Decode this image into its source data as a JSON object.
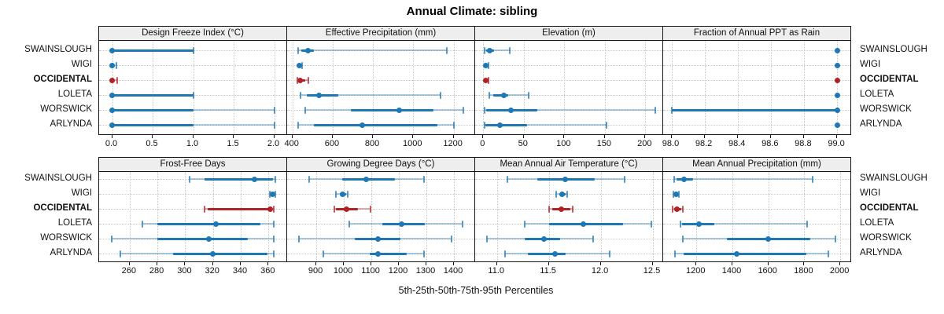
{
  "title": "Annual Climate: sibling",
  "footer": "5th-25th-50th-75th-95th Percentiles",
  "sites": [
    "SWAINSLOUGH",
    "WIGI",
    "OCCIDENTAL",
    "LOLETA",
    "WORSWICK",
    "ARLYNDA"
  ],
  "highlight_site": "OCCIDENTAL",
  "colors": {
    "blue": "#1f77b4",
    "red": "#b12226",
    "grid": "#c7c7c7",
    "strip_bg": "#eeeeee",
    "border": "#161616"
  },
  "chart_data": {
    "type": "scatter",
    "subtype": "percentile-dotplot",
    "percentile_labels": [
      "5th",
      "25th",
      "50th",
      "75th",
      "95th"
    ],
    "panels": [
      {
        "title": "Design Freeze Index (°C)",
        "band": 0,
        "ticks": [
          0.0,
          0.5,
          1.0,
          1.5,
          2.0
        ],
        "tick_labels": [
          "0.0",
          "0.5",
          "1.0",
          "1.5",
          "2.0"
        ],
        "range": [
          -0.16,
          2.17
        ],
        "data": {
          "SWAINSLOUGH": [
            0,
            0,
            0,
            1.0,
            1.0
          ],
          "WIGI": [
            0,
            0,
            0,
            0.02,
            0.05
          ],
          "OCCIDENTAL": [
            0,
            0,
            0,
            0.02,
            0.06
          ],
          "LOLETA": [
            0,
            0,
            0,
            1.0,
            1.0
          ],
          "WORSWICK": [
            0,
            0,
            0,
            1.0,
            2.0
          ],
          "ARLYNDA": [
            0,
            0,
            0,
            1.0,
            2.0
          ]
        }
      },
      {
        "title": "Effective Precipitation (mm)",
        "band": 0,
        "ticks": [
          400,
          600,
          800,
          1000,
          1200
        ],
        "tick_labels": [
          "400",
          "600",
          "800",
          "1000",
          "1200"
        ],
        "range": [
          374,
          1311
        ],
        "data": {
          "SWAINSLOUGH": [
            430,
            445,
            478,
            505,
            1165
          ],
          "WIGI": [
            424,
            430,
            434,
            440,
            448
          ],
          "OCCIDENTAL": [
            426,
            432,
            438,
            465,
            481
          ],
          "LOLETA": [
            440,
            470,
            533,
            627,
            1135
          ],
          "WORSWICK": [
            465,
            690,
            930,
            1100,
            1248
          ],
          "ARLYNDA": [
            430,
            505,
            745,
            1120,
            1203
          ]
        }
      },
      {
        "title": "Elevation (m)",
        "band": 0,
        "ticks": [
          0,
          50,
          100,
          150,
          200
        ],
        "tick_labels": [
          "0",
          "50",
          "100",
          "150",
          "200"
        ],
        "range": [
          -10,
          223
        ],
        "data": {
          "SWAINSLOUGH": [
            2,
            4,
            8,
            13,
            33
          ],
          "WIGI": [
            1,
            2,
            3,
            4,
            6
          ],
          "OCCIDENTAL": [
            1,
            2,
            3,
            4,
            6
          ],
          "LOLETA": [
            7,
            12,
            25,
            31,
            56
          ],
          "WORSWICK": [
            2,
            4,
            34,
            67,
            212
          ],
          "ARLYNDA": [
            2,
            3,
            21,
            54,
            152
          ]
        }
      },
      {
        "title": "Fraction of Annual PPT as Rain",
        "band": 0,
        "ticks": [
          98.0,
          98.2,
          98.4,
          98.6,
          98.8,
          99.0
        ],
        "tick_labels": [
          "98.0",
          "98.2",
          "98.4",
          "98.6",
          "98.8",
          "99.0"
        ],
        "range": [
          97.95,
          99.09
        ],
        "data": {
          "SWAINSLOUGH": [
            99.0,
            99.0,
            99.0,
            99.0,
            99.0
          ],
          "WIGI": [
            99.0,
            99.0,
            99.0,
            99.0,
            99.0
          ],
          "OCCIDENTAL": [
            99.0,
            99.0,
            99.0,
            99.0,
            99.0
          ],
          "LOLETA": [
            99.0,
            99.0,
            99.0,
            99.0,
            99.0
          ],
          "WORSWICK": [
            98.0,
            98.0,
            99.0,
            99.0,
            99.0
          ],
          "ARLYNDA": [
            99.0,
            99.0,
            99.0,
            99.0,
            99.0
          ]
        }
      },
      {
        "title": "Frost-Free Days",
        "band": 1,
        "ticks": [
          260,
          280,
          300,
          320,
          340,
          360
        ],
        "tick_labels": [
          "260",
          "280",
          "300",
          "320",
          "340",
          "360"
        ],
        "range": [
          238,
          374
        ],
        "data": {
          "SWAINSLOUGH": [
            303,
            314,
            350,
            363,
            365
          ],
          "WIGI": [
            361,
            362,
            363,
            364,
            365
          ],
          "OCCIDENTAL": [
            314,
            316,
            361,
            363,
            364
          ],
          "LOLETA": [
            269,
            280,
            322,
            354,
            364
          ],
          "WORSWICK": [
            247,
            280,
            317,
            345,
            364
          ],
          "ARLYNDA": [
            253,
            291,
            320,
            359,
            364
          ]
        }
      },
      {
        "title": "Growing Degree Days (°C)",
        "band": 1,
        "ticks": [
          900,
          1000,
          1100,
          1200,
          1300,
          1400
        ],
        "tick_labels": [
          "900",
          "1000",
          "1100",
          "1200",
          "1300",
          "1400"
        ],
        "range": [
          794,
          1480
        ],
        "data": {
          "SWAINSLOUGH": [
            875,
            995,
            1080,
            1185,
            1290
          ],
          "WIGI": [
            970,
            985,
            996,
            1008,
            1014
          ],
          "OCCIDENTAL": [
            965,
            972,
            1011,
            1050,
            1097
          ],
          "LOLETA": [
            1020,
            1140,
            1210,
            1295,
            1430
          ],
          "WORSWICK": [
            837,
            1040,
            1125,
            1205,
            1390
          ],
          "ARLYNDA": [
            925,
            1095,
            1123,
            1228,
            1290
          ]
        }
      },
      {
        "title": "Mean Annual Air Temperature (°C)",
        "band": 1,
        "ticks": [
          11.0,
          11.5,
          12.0,
          12.5
        ],
        "tick_labels": [
          "11.0",
          "11.5",
          "12.0",
          "12.5"
        ],
        "range": [
          10.79,
          12.61
        ],
        "data": {
          "SWAINSLOUGH": [
            11.1,
            11.39,
            11.66,
            11.94,
            12.23
          ],
          "WIGI": [
            11.57,
            11.6,
            11.63,
            11.66,
            11.68
          ],
          "OCCIDENTAL": [
            11.5,
            11.53,
            11.62,
            11.71,
            11.73
          ],
          "LOLETA": [
            11.27,
            11.5,
            11.83,
            12.22,
            12.49
          ],
          "WORSWICK": [
            10.9,
            11.27,
            11.45,
            11.61,
            11.93
          ],
          "ARLYNDA": [
            11.08,
            11.3,
            11.56,
            11.66,
            12.09
          ]
        }
      },
      {
        "title": "Mean Annual Precipitation (mm)",
        "band": 1,
        "ticks": [
          1200,
          1400,
          1600,
          1800,
          2000
        ],
        "tick_labels": [
          "1200",
          "1400",
          "1600",
          "1800",
          "2000"
        ],
        "range": [
          1015,
          2065
        ],
        "data": {
          "SWAINSLOUGH": [
            1075,
            1090,
            1130,
            1180,
            1845
          ],
          "WIGI": [
            1070,
            1078,
            1086,
            1094,
            1102
          ],
          "OCCIDENTAL": [
            1068,
            1078,
            1090,
            1115,
            1126
          ],
          "LOLETA": [
            1110,
            1118,
            1215,
            1300,
            1815
          ],
          "WORSWICK": [
            1125,
            1370,
            1600,
            1835,
            1975
          ],
          "ARLYNDA": [
            1080,
            1130,
            1425,
            1810,
            1935
          ]
        }
      }
    ],
    "layout": {
      "grid": "2 rows x 4 cols",
      "gridlines": "dotted",
      "row_labels_left": true,
      "row_labels_right": true
    }
  }
}
